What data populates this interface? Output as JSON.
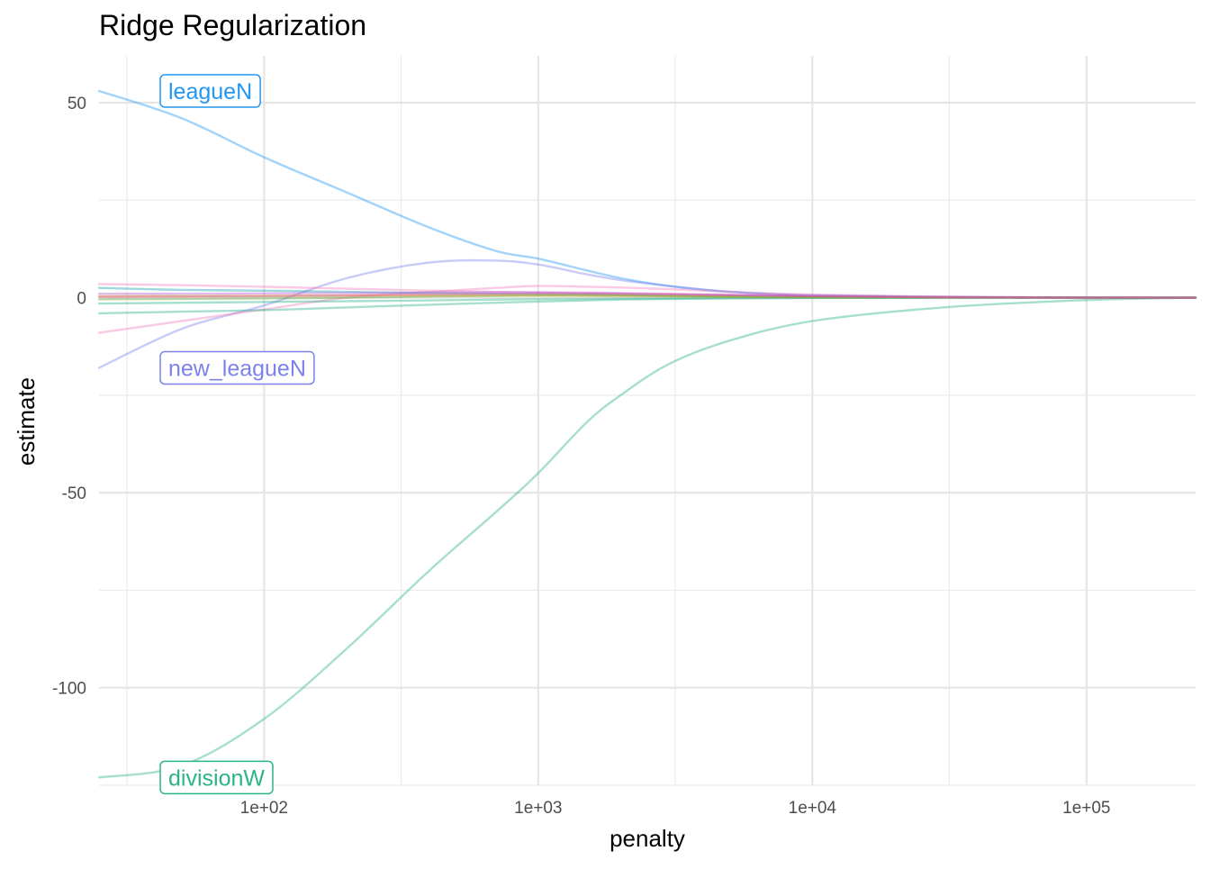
{
  "chart_data": {
    "type": "line",
    "title": "Ridge Regularization",
    "xlabel": "penalty",
    "ylabel": "estimate",
    "x_scale": "log10",
    "xlim": [
      25,
      250000
    ],
    "ylim": [
      -125,
      62
    ],
    "x_ticks": [
      {
        "value": 100,
        "label": "1e+02"
      },
      {
        "value": 1000,
        "label": "1e+03"
      },
      {
        "value": 10000,
        "label": "1e+04"
      },
      {
        "value": 100000,
        "label": "1e+05"
      }
    ],
    "x_minor_ticks": [
      31.6,
      316,
      3160,
      31600,
      316000
    ],
    "y_ticks": [
      {
        "value": 50,
        "label": "50"
      },
      {
        "value": 0,
        "label": "0"
      },
      {
        "value": -50,
        "label": "-50"
      },
      {
        "value": -100,
        "label": "-100"
      }
    ],
    "y_minor_ticks": [
      25,
      -25,
      -75,
      -125
    ],
    "grid": true,
    "legend": "none",
    "x": [
      25,
      50,
      100,
      200,
      400,
      700,
      1000,
      1500,
      2000,
      3000,
      5000,
      10000,
      30000,
      100000,
      250000
    ],
    "series": [
      {
        "name": "leagueN",
        "labeled": true,
        "color": "#2196f3",
        "values": [
          53,
          46,
          36,
          27,
          18,
          12,
          10,
          7,
          5,
          3,
          1.5,
          0.6,
          0.2,
          0.05,
          0
        ]
      },
      {
        "name": "new_leagueN",
        "labeled": true,
        "color": "#7b83eb",
        "values": [
          -18,
          -8,
          -2,
          5,
          9,
          9.5,
          8.5,
          6,
          4.5,
          3,
          1.5,
          0.6,
          0.2,
          0.05,
          0
        ]
      },
      {
        "name": "divisionW",
        "labeled": true,
        "color": "#2bb38a",
        "values": [
          -123,
          -120,
          -108,
          -90,
          -70,
          -55,
          -45,
          -32,
          -25,
          -17,
          -11,
          -6,
          -2.5,
          -0.6,
          0
        ]
      },
      {
        "color": "#f27fbf",
        "values": [
          -9,
          -6,
          -3,
          0,
          1.5,
          2.5,
          3,
          2.8,
          2.6,
          2.2,
          1.5,
          0.8,
          0.3,
          0.05,
          0
        ]
      },
      {
        "color": "#f27fbf",
        "values": [
          3.5,
          3.2,
          2.8,
          2.3,
          1.8,
          1.5,
          1.3,
          1.1,
          1,
          0.8,
          0.6,
          0.3,
          0.1,
          0.02,
          0
        ]
      },
      {
        "color": "#2bb38a",
        "values": [
          -4,
          -3.6,
          -3.2,
          -2.5,
          -1.8,
          -1.3,
          -1,
          -0.7,
          -0.5,
          -0.3,
          -0.2,
          -0.1,
          -0.03,
          0,
          0
        ]
      },
      {
        "color": "#2bb38a",
        "values": [
          -1.5,
          -1.3,
          -1.1,
          -0.9,
          -0.7,
          -0.5,
          -0.4,
          -0.3,
          -0.25,
          -0.2,
          -0.1,
          -0.05,
          -0.02,
          0,
          0
        ]
      },
      {
        "color": "#19a0b0",
        "values": [
          2.5,
          2,
          1.8,
          1.5,
          1.2,
          1,
          0.9,
          0.8,
          0.7,
          0.5,
          0.35,
          0.2,
          0.05,
          0,
          0
        ]
      },
      {
        "color": "#5fa02a",
        "values": [
          -0.4,
          -0.3,
          -0.2,
          0,
          0.3,
          0.5,
          0.6,
          0.6,
          0.55,
          0.45,
          0.3,
          0.15,
          0.05,
          0,
          0
        ]
      },
      {
        "color": "#c8a010",
        "values": [
          0.4,
          0.45,
          0.5,
          0.55,
          0.6,
          0.6,
          0.55,
          0.5,
          0.45,
          0.35,
          0.25,
          0.12,
          0.03,
          0,
          0
        ]
      },
      {
        "color": "#b45ad6",
        "values": [
          1,
          1,
          1.1,
          1.2,
          1.3,
          1.4,
          1.4,
          1.3,
          1.2,
          1,
          0.7,
          0.4,
          0.1,
          0.02,
          0
        ]
      },
      {
        "color": "#e0509a",
        "values": [
          0.2,
          0.3,
          0.4,
          0.6,
          0.8,
          1,
          1.1,
          1.1,
          1,
          0.9,
          0.7,
          0.4,
          0.12,
          0.02,
          0
        ]
      }
    ]
  }
}
